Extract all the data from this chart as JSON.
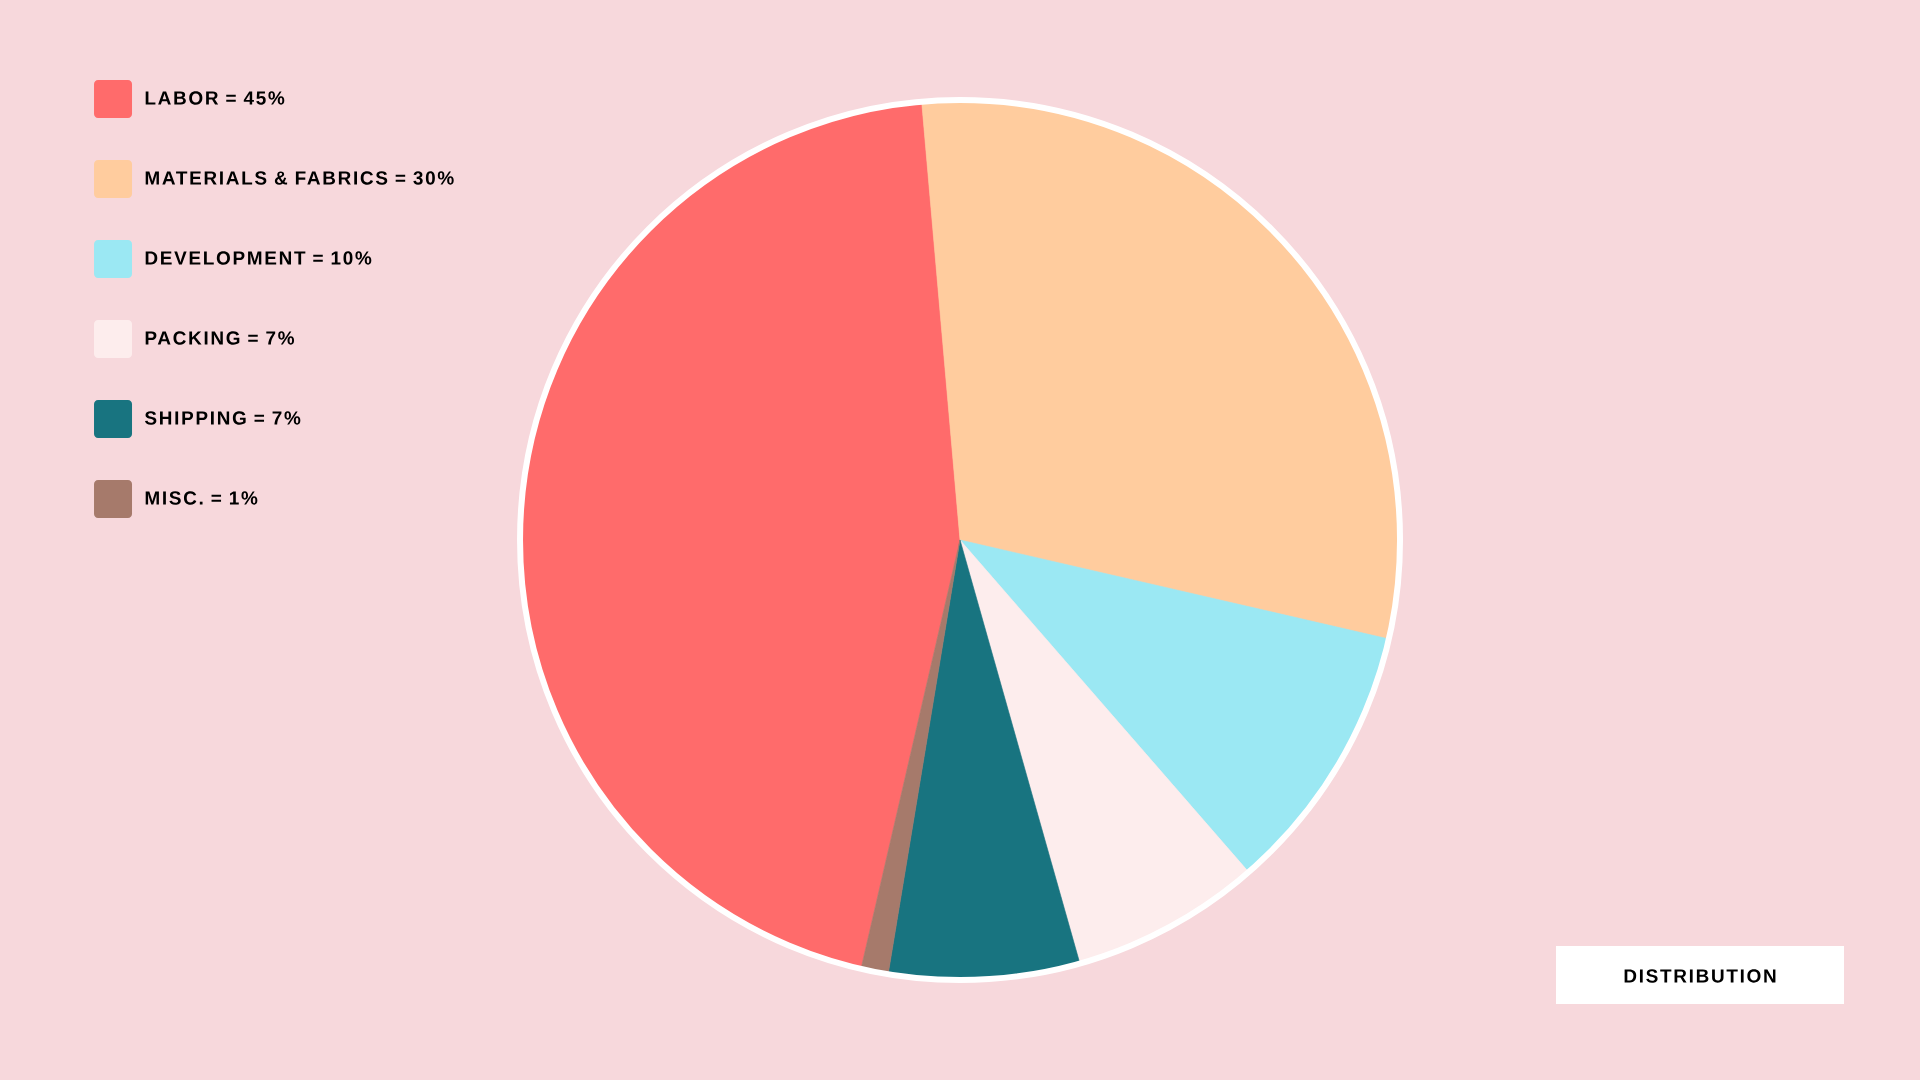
{
  "chart_data": {
    "type": "pie",
    "title": "DISTRIBUTION",
    "categories": [
      "LABOR = 45%",
      "MATERIALS & FABRICS = 30%",
      "DEVELOPMENT = 10%",
      "PACKING = 7%",
      "SHIPPING = 7%",
      "MISC. = 1%"
    ],
    "values": [
      45,
      30,
      10,
      7,
      7,
      1
    ],
    "colors": [
      "#ff6b6b",
      "#ffcc9e",
      "#9be8f3",
      "#fdeded",
      "#187480",
      "#a67a6b"
    ],
    "legend": "top left"
  }
}
